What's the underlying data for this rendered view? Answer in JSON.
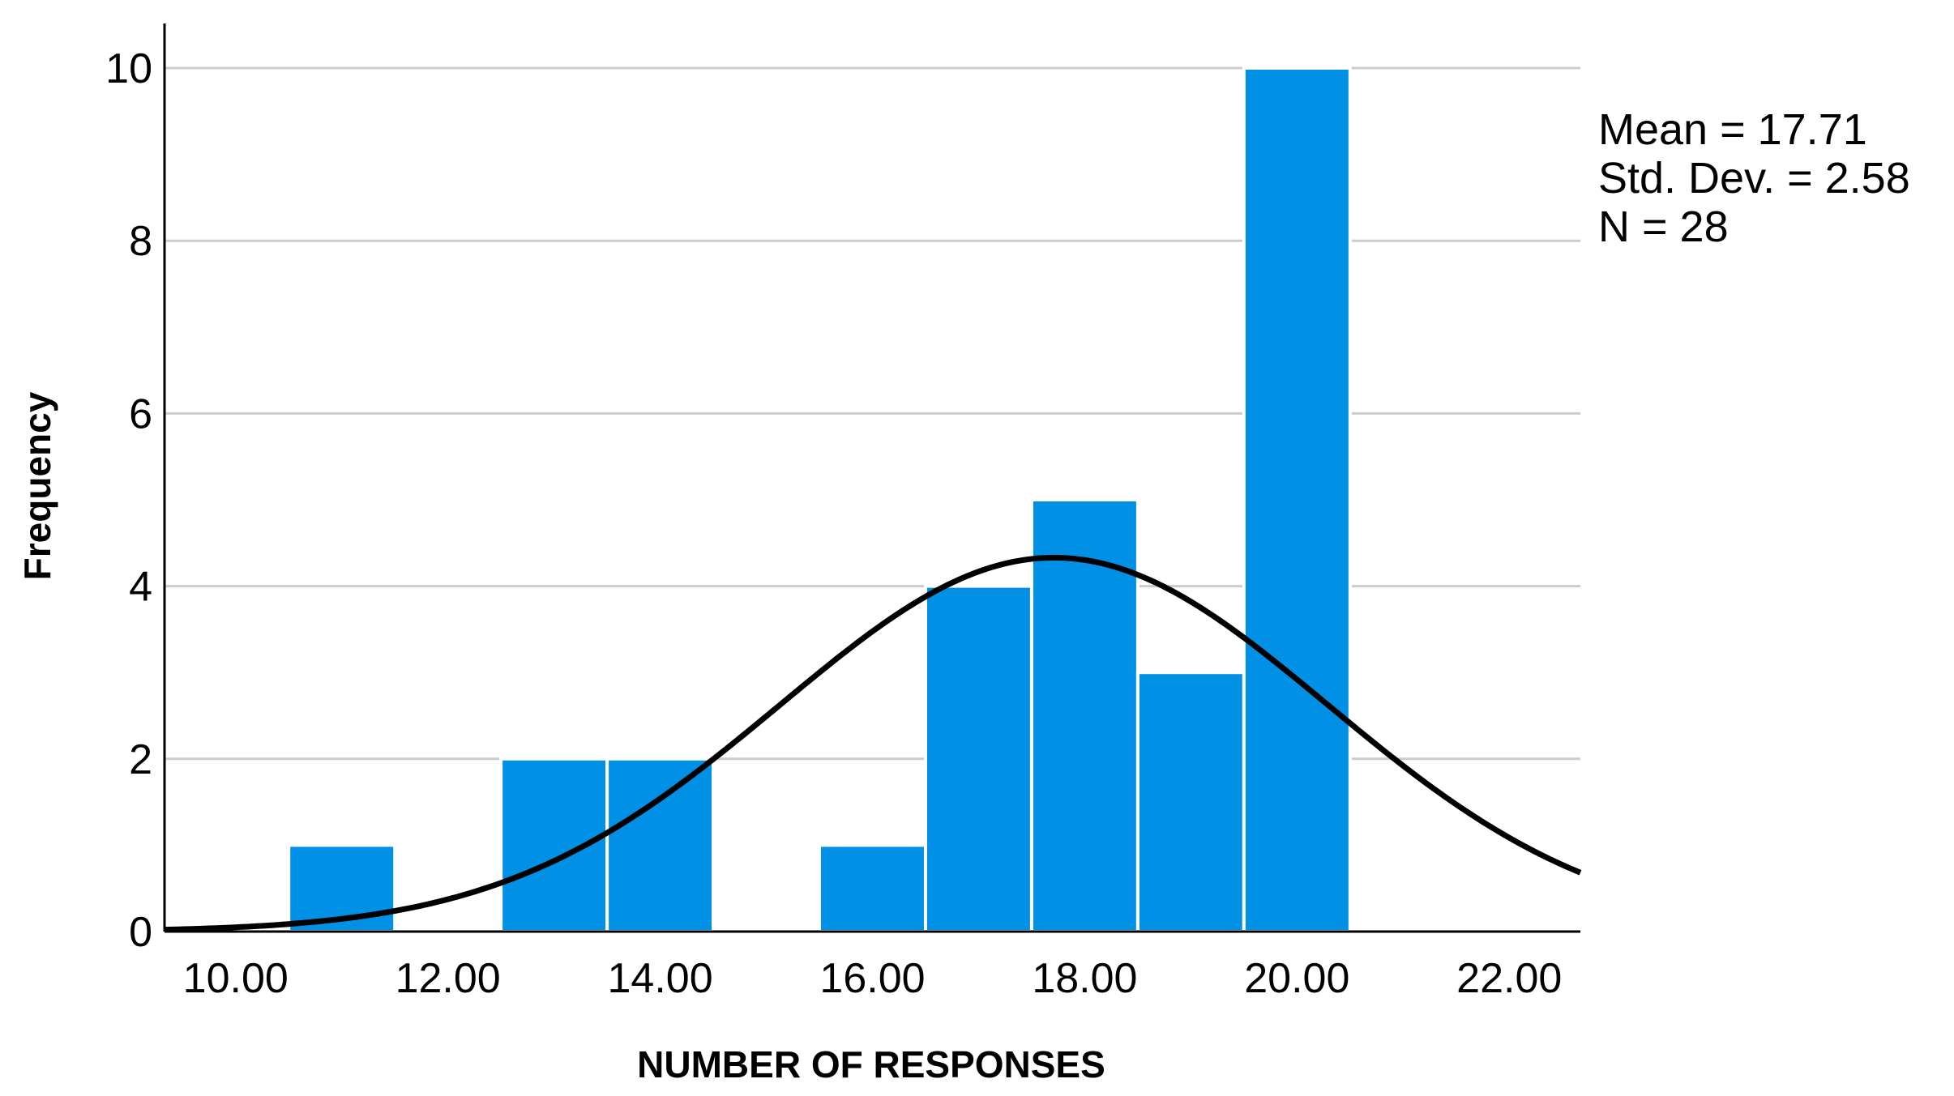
{
  "chart_data": {
    "type": "bar",
    "subtype": "histogram",
    "xlabel": "NUMBER OF RESPONSES",
    "ylabel": "Frequency",
    "xlim": [
      9.33,
      22.67
    ],
    "ylim": [
      0,
      10
    ],
    "x_ticks": [
      10,
      12,
      14,
      16,
      18,
      20,
      22
    ],
    "x_tick_labels": [
      "10.00",
      "12.00",
      "14.00",
      "16.00",
      "18.00",
      "20.00",
      "22.00"
    ],
    "y_ticks": [
      0,
      2,
      4,
      6,
      8,
      10
    ],
    "y_tick_labels": [
      "0",
      "2",
      "4",
      "6",
      "8",
      "10"
    ],
    "grid": "horizontal",
    "bin_width": 1,
    "bins": [
      {
        "center": 11,
        "count": 1
      },
      {
        "center": 13,
        "count": 2
      },
      {
        "center": 14,
        "count": 2
      },
      {
        "center": 16,
        "count": 1
      },
      {
        "center": 17,
        "count": 4
      },
      {
        "center": 18,
        "count": 5
      },
      {
        "center": 19,
        "count": 3
      },
      {
        "center": 20,
        "count": 10
      }
    ],
    "normal_curve": {
      "mean": 17.71,
      "std": 2.58,
      "n": 28
    },
    "bar_color": "#0090e6",
    "curve_color": "#000000",
    "grid_color": "#cccccc",
    "stats": {
      "mean_text": "Mean = 17.71",
      "std_text": "Std. Dev. = 2.58",
      "n_text": "N = 28"
    }
  }
}
